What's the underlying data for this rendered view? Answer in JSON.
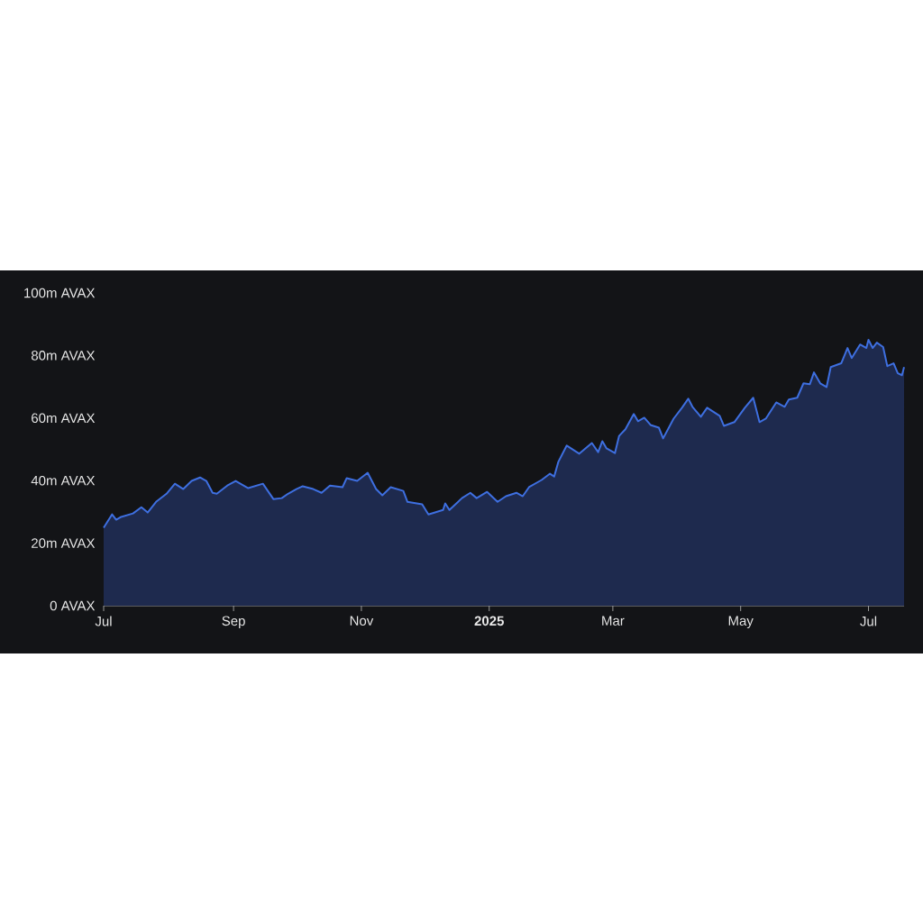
{
  "chart_data": {
    "type": "area",
    "x": [
      "2024-07-01",
      "2024-07-05",
      "2024-07-07",
      "2024-07-09",
      "2024-07-15",
      "2024-07-19",
      "2024-07-22",
      "2024-07-26",
      "2024-07-31",
      "2024-08-04",
      "2024-08-08",
      "2024-08-12",
      "2024-08-16",
      "2024-08-19",
      "2024-08-22",
      "2024-08-24",
      "2024-08-29",
      "2024-09-02",
      "2024-09-08",
      "2024-09-15",
      "2024-09-20",
      "2024-09-24",
      "2024-09-27",
      "2024-10-01",
      "2024-10-04",
      "2024-10-09",
      "2024-10-13",
      "2024-10-17",
      "2024-10-23",
      "2024-10-25",
      "2024-10-30",
      "2024-11-04",
      "2024-11-08",
      "2024-11-11",
      "2024-11-15",
      "2024-11-21",
      "2024-11-23",
      "2024-11-30",
      "2024-12-03",
      "2024-12-10",
      "2024-12-11",
      "2024-12-13",
      "2024-12-19",
      "2024-12-23",
      "2024-12-26",
      "2024-12-31",
      "2025-01-05",
      "2025-01-09",
      "2025-01-14",
      "2025-01-17",
      "2025-01-20",
      "2025-01-26",
      "2025-01-30",
      "2025-02-01",
      "2025-02-03",
      "2025-02-07",
      "2025-02-13",
      "2025-02-19",
      "2025-02-22",
      "2025-02-24",
      "2025-02-26",
      "2025-03-02",
      "2025-03-04",
      "2025-03-07",
      "2025-03-11",
      "2025-03-13",
      "2025-03-16",
      "2025-03-19",
      "2025-03-23",
      "2025-03-25",
      "2025-03-30",
      "2025-04-03",
      "2025-04-06",
      "2025-04-08",
      "2025-04-12",
      "2025-04-15",
      "2025-04-21",
      "2025-04-23",
      "2025-04-28",
      "2025-05-03",
      "2025-05-07",
      "2025-05-10",
      "2025-05-13",
      "2025-05-18",
      "2025-05-22",
      "2025-05-24",
      "2025-05-28",
      "2025-05-31",
      "2025-06-03",
      "2025-06-05",
      "2025-06-08",
      "2025-06-11",
      "2025-06-13",
      "2025-06-18",
      "2025-06-21",
      "2025-06-23",
      "2025-06-27",
      "2025-06-30",
      "2025-07-01",
      "2025-07-03",
      "2025-07-05",
      "2025-07-08",
      "2025-07-10",
      "2025-07-13",
      "2025-07-15",
      "2025-07-17",
      "2025-07-18"
    ],
    "values": [
      24.9,
      29.2,
      27.5,
      28.3,
      29.5,
      31.5,
      29.8,
      33.2,
      35.8,
      39.0,
      37.3,
      39.9,
      41.0,
      39.9,
      36.1,
      35.8,
      38.4,
      39.9,
      37.6,
      39.0,
      34.1,
      34.4,
      35.8,
      37.3,
      38.2,
      37.3,
      36.1,
      38.4,
      37.9,
      40.8,
      39.9,
      42.5,
      37.3,
      35.3,
      37.9,
      36.7,
      33.2,
      32.4,
      29.2,
      30.6,
      32.7,
      30.6,
      34.4,
      36.1,
      34.4,
      36.4,
      33.2,
      35.0,
      36.1,
      35.0,
      37.9,
      40.2,
      42.2,
      41.3,
      46.0,
      51.2,
      48.6,
      52.0,
      49.1,
      52.6,
      50.3,
      48.8,
      54.3,
      56.4,
      61.3,
      59.0,
      60.1,
      57.8,
      56.9,
      53.5,
      59.8,
      63.3,
      66.2,
      63.6,
      60.4,
      63.3,
      60.7,
      57.5,
      58.7,
      63.3,
      66.5,
      58.7,
      59.8,
      65.0,
      63.6,
      65.9,
      66.5,
      71.1,
      70.8,
      74.6,
      71.1,
      69.9,
      76.3,
      77.5,
      82.4,
      79.2,
      83.5,
      82.4,
      85.0,
      82.4,
      84.1,
      82.7,
      76.6,
      77.5,
      74.3,
      73.7,
      76.3
    ],
    "color": "#3e6fe0",
    "xlim": [
      "2024-07-01",
      "2025-07-18"
    ],
    "xticks": [
      {
        "value": "2024-07-01",
        "label": "Jul"
      },
      {
        "value": "2024-09-01",
        "label": "Sep"
      },
      {
        "value": "2024-11-01",
        "label": "Nov"
      },
      {
        "value": "2025-01-01",
        "label": "**2025**"
      },
      {
        "value": "2025-03-01",
        "label": "Mar"
      },
      {
        "value": "2025-05-01",
        "label": "May"
      },
      {
        "value": "2025-07-01",
        "label": "Jul"
      }
    ],
    "ylim": [
      0,
      100
    ],
    "yticks": [
      {
        "value": 0,
        "label": "0 AVAX"
      },
      {
        "value": 20,
        "label": "20m AVAX"
      },
      {
        "value": 40,
        "label": "40m AVAX"
      },
      {
        "value": 60,
        "label": "60m AVAX"
      },
      {
        "value": 80,
        "label": "80m AVAX"
      },
      {
        "value": 100,
        "label": "100m AVAX"
      }
    ],
    "grid": false
  }
}
